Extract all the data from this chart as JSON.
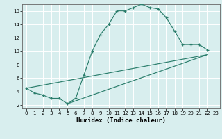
{
  "xlabel": "Humidex (Indice chaleur)",
  "xlim": [
    -0.5,
    23.5
  ],
  "ylim": [
    1.5,
    17.0
  ],
  "xticks": [
    0,
    1,
    2,
    3,
    4,
    5,
    6,
    7,
    8,
    9,
    10,
    11,
    12,
    13,
    14,
    15,
    16,
    17,
    18,
    19,
    20,
    21,
    22,
    23
  ],
  "yticks": [
    2,
    4,
    6,
    8,
    10,
    12,
    14,
    16
  ],
  "line_color": "#2a7d6b",
  "bg_color": "#d8eeee",
  "grid_color": "#ffffff",
  "curve1_x": [
    0,
    1,
    2,
    3,
    4,
    5,
    6,
    7,
    8,
    9,
    10,
    11,
    12,
    13,
    14,
    15,
    16,
    17,
    18,
    19,
    20,
    21,
    22
  ],
  "curve1_y": [
    4.5,
    3.8,
    3.5,
    3.0,
    3.0,
    2.2,
    3.0,
    6.5,
    10.0,
    12.5,
    14.0,
    16.0,
    16.0,
    16.5,
    17.0,
    16.5,
    16.3,
    15.0,
    13.0,
    11.0,
    11.0,
    11.0,
    10.2
  ],
  "curve2_x": [
    0,
    22
  ],
  "curve2_y": [
    4.5,
    9.5
  ],
  "curve3_x": [
    5,
    22
  ],
  "curve3_y": [
    2.2,
    9.5
  ],
  "marker_x": [
    0,
    1,
    2,
    3,
    4,
    5,
    6,
    7,
    8,
    9,
    10,
    11,
    12,
    13,
    14,
    15,
    16,
    17,
    18,
    19,
    20,
    21,
    22
  ],
  "marker_y": [
    4.5,
    3.8,
    3.5,
    3.0,
    3.0,
    2.2,
    3.0,
    6.5,
    10.0,
    12.5,
    14.0,
    16.0,
    16.0,
    16.5,
    17.0,
    16.5,
    16.3,
    15.0,
    13.0,
    11.0,
    11.0,
    11.0,
    10.2
  ]
}
